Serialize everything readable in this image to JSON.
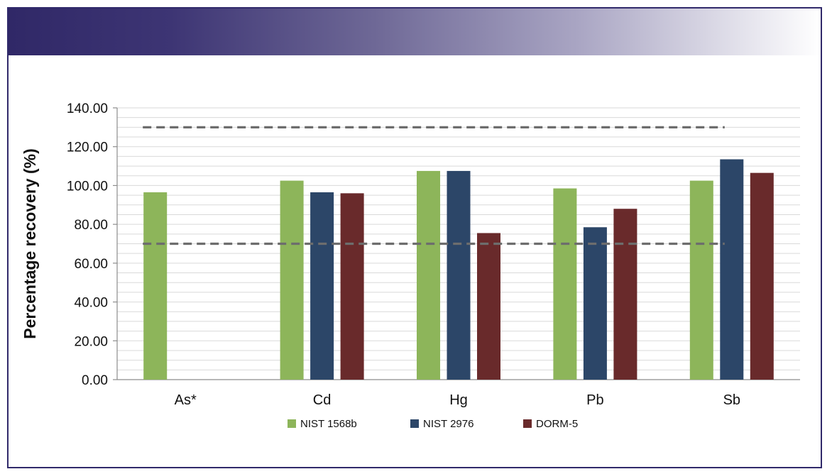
{
  "chart_data": {
    "type": "bar",
    "ylabel": "Percentage recovery (%)",
    "xlabel": "",
    "ylim": [
      0,
      140
    ],
    "yticks": [
      "0.00",
      "20.00",
      "40.00",
      "60.00",
      "80.00",
      "100.00",
      "120.00",
      "140.00"
    ],
    "categories": [
      "As*",
      "Cd",
      "Hg",
      "Pb",
      "Sb"
    ],
    "series": [
      {
        "name": "NIST 1568b",
        "color": "#8db55a",
        "values": [
          96.5,
          102.5,
          107.5,
          98.5,
          102.5
        ]
      },
      {
        "name": "NIST 2976",
        "color": "#2c4668",
        "values": [
          null,
          96.5,
          107.5,
          78.5,
          113.5
        ]
      },
      {
        "name": "DORM-5",
        "color": "#692a2b",
        "values": [
          null,
          96.0,
          75.5,
          88.0,
          106.5
        ]
      }
    ],
    "reference_lines": [
      130,
      70
    ],
    "grid": true,
    "legend_position": "bottom"
  }
}
